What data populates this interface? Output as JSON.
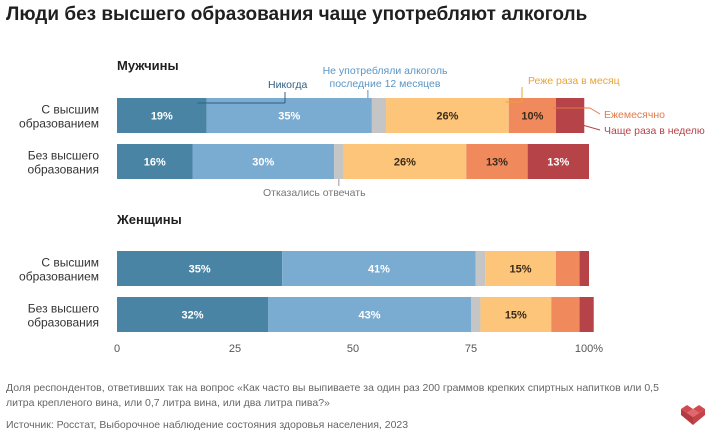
{
  "title": "Люди без высшего образования чаще употребляют алкоголь",
  "footnote": "Доля респондентов, ответивших так на вопрос «Как часто вы выпиваете за один раз 200 граммов крепких спиртных напитков или 0,5 литра крепленого вина, или 0,7 литра вина, или два литра пива?»",
  "source": "Источник: Росстат, Выборочное наблюдение состояния здоровья населения, 2023",
  "colors": {
    "never": "#4a84a5",
    "not_12m": "#7aabd1",
    "refused": "#c5c5c5",
    "less_monthly": "#fdc579",
    "monthly": "#f08a5c",
    "more_monthly": "#b54347"
  },
  "chart_data": {
    "type": "bar",
    "orientation": "horizontal",
    "stacked": true,
    "xlim": [
      0,
      100
    ],
    "x_ticks": [
      "0",
      "25",
      "50",
      "75",
      "100%"
    ],
    "groups": [
      {
        "name": "Мужчины",
        "categories": [
          "С высшим образованием",
          "Без высшего образования"
        ],
        "series": [
          {
            "name": "Никогда",
            "values": [
              19,
              16
            ],
            "labels": [
              "19%",
              "16%"
            ],
            "color_key": "never"
          },
          {
            "name": "Не употребляли алкоголь последние 12 месяцев",
            "values": [
              35,
              30
            ],
            "labels": [
              "35%",
              "30%"
            ],
            "color_key": "not_12m"
          },
          {
            "name": "Отказались отвечать",
            "values": [
              3,
              2
            ],
            "labels": [
              "",
              ""
            ],
            "color_key": "refused"
          },
          {
            "name": "Реже раза в месяц",
            "values": [
              26,
              26
            ],
            "labels": [
              "26%",
              "26%"
            ],
            "color_key": "less_monthly"
          },
          {
            "name": "Ежемесячно",
            "values": [
              10,
              13
            ],
            "labels": [
              "10%",
              "13%"
            ],
            "color_key": "monthly"
          },
          {
            "name": "Чаще раза в неделю",
            "values": [
              6,
              13
            ],
            "labels": [
              "",
              "13%"
            ],
            "color_key": "more_monthly"
          }
        ]
      },
      {
        "name": "Женщины",
        "categories": [
          "С высшим образованием",
          "Без высшего образования"
        ],
        "series": [
          {
            "name": "Никогда",
            "values": [
              35,
              32
            ],
            "labels": [
              "35%",
              "32%"
            ],
            "color_key": "never"
          },
          {
            "name": "Не употребляли алкоголь последние 12 месяцев",
            "values": [
              41,
              43
            ],
            "labels": [
              "41%",
              "43%"
            ],
            "color_key": "not_12m"
          },
          {
            "name": "Отказались отвечать",
            "values": [
              2,
              2
            ],
            "labels": [
              "",
              ""
            ],
            "color_key": "refused"
          },
          {
            "name": "Реже раза в месяц",
            "values": [
              15,
              15
            ],
            "labels": [
              "15%",
              "15%"
            ],
            "color_key": "less_monthly"
          },
          {
            "name": "Ежемесячно",
            "values": [
              5,
              6
            ],
            "labels": [
              "",
              ""
            ],
            "color_key": "monthly"
          },
          {
            "name": "Чаще раза в неделю",
            "values": [
              2,
              3
            ],
            "labels": [
              "",
              ""
            ],
            "color_key": "more_monthly"
          }
        ]
      }
    ],
    "annotations": [
      {
        "text": "Никогда",
        "series_key": "never"
      },
      {
        "text": "Не употребляли алкоголь",
        "series_key": "not_12m"
      },
      {
        "text": "последние 12 месяцев",
        "series_key": "not_12m"
      },
      {
        "text": "Реже раза в месяц",
        "series_key": "less_monthly"
      },
      {
        "text": "Ежемесячно",
        "series_key": "monthly"
      },
      {
        "text": "Чаще раза в неделю",
        "series_key": "more_monthly"
      },
      {
        "text": "Отказались отвечать",
        "series_key": "refused"
      }
    ]
  }
}
